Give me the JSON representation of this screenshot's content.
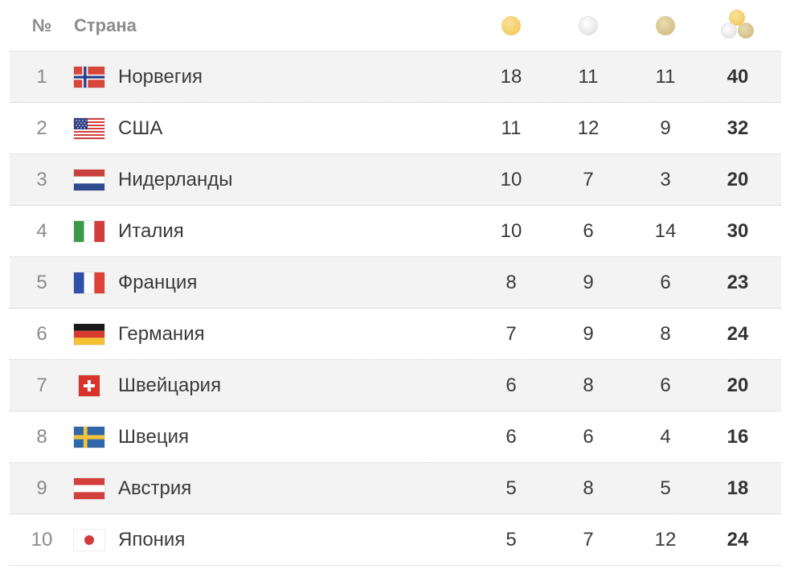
{
  "header": {
    "rank_label": "№",
    "country_label": "Страна",
    "gold_icon": "gold-medal-icon",
    "silver_icon": "silver-medal-icon",
    "bronze_icon": "bronze-medal-icon",
    "total_icon": "total-medals-icon"
  },
  "colors": {
    "row_alt_bg": "#f3f3f3",
    "gold": "#efc24c",
    "silver": "#dcdcdc",
    "bronze": "#cbb47c",
    "text": "#3a3a3a",
    "muted": "#8a8a8a"
  },
  "rows": [
    {
      "rank": "1",
      "flag": "norway-flag-icon",
      "country": "Норвегия",
      "gold": "18",
      "silver": "11",
      "bronze": "11",
      "total": "40"
    },
    {
      "rank": "2",
      "flag": "usa-flag-icon",
      "country": "США",
      "gold": "11",
      "silver": "12",
      "bronze": "9",
      "total": "32"
    },
    {
      "rank": "3",
      "flag": "netherlands-flag-icon",
      "country": "Нидерланды",
      "gold": "10",
      "silver": "7",
      "bronze": "3",
      "total": "20"
    },
    {
      "rank": "4",
      "flag": "italy-flag-icon",
      "country": "Италия",
      "gold": "10",
      "silver": "6",
      "bronze": "14",
      "total": "30"
    },
    {
      "rank": "5",
      "flag": "france-flag-icon",
      "country": "Франция",
      "gold": "8",
      "silver": "9",
      "bronze": "6",
      "total": "23"
    },
    {
      "rank": "6",
      "flag": "germany-flag-icon",
      "country": "Германия",
      "gold": "7",
      "silver": "9",
      "bronze": "8",
      "total": "24"
    },
    {
      "rank": "7",
      "flag": "switzerland-flag-icon",
      "country": "Швейцария",
      "gold": "6",
      "silver": "8",
      "bronze": "6",
      "total": "20"
    },
    {
      "rank": "8",
      "flag": "sweden-flag-icon",
      "country": "Швеция",
      "gold": "6",
      "silver": "6",
      "bronze": "4",
      "total": "16"
    },
    {
      "rank": "9",
      "flag": "austria-flag-icon",
      "country": "Австрия",
      "gold": "5",
      "silver": "8",
      "bronze": "5",
      "total": "18"
    },
    {
      "rank": "10",
      "flag": "japan-flag-icon",
      "country": "Япония",
      "gold": "5",
      "silver": "7",
      "bronze": "12",
      "total": "24"
    }
  ]
}
